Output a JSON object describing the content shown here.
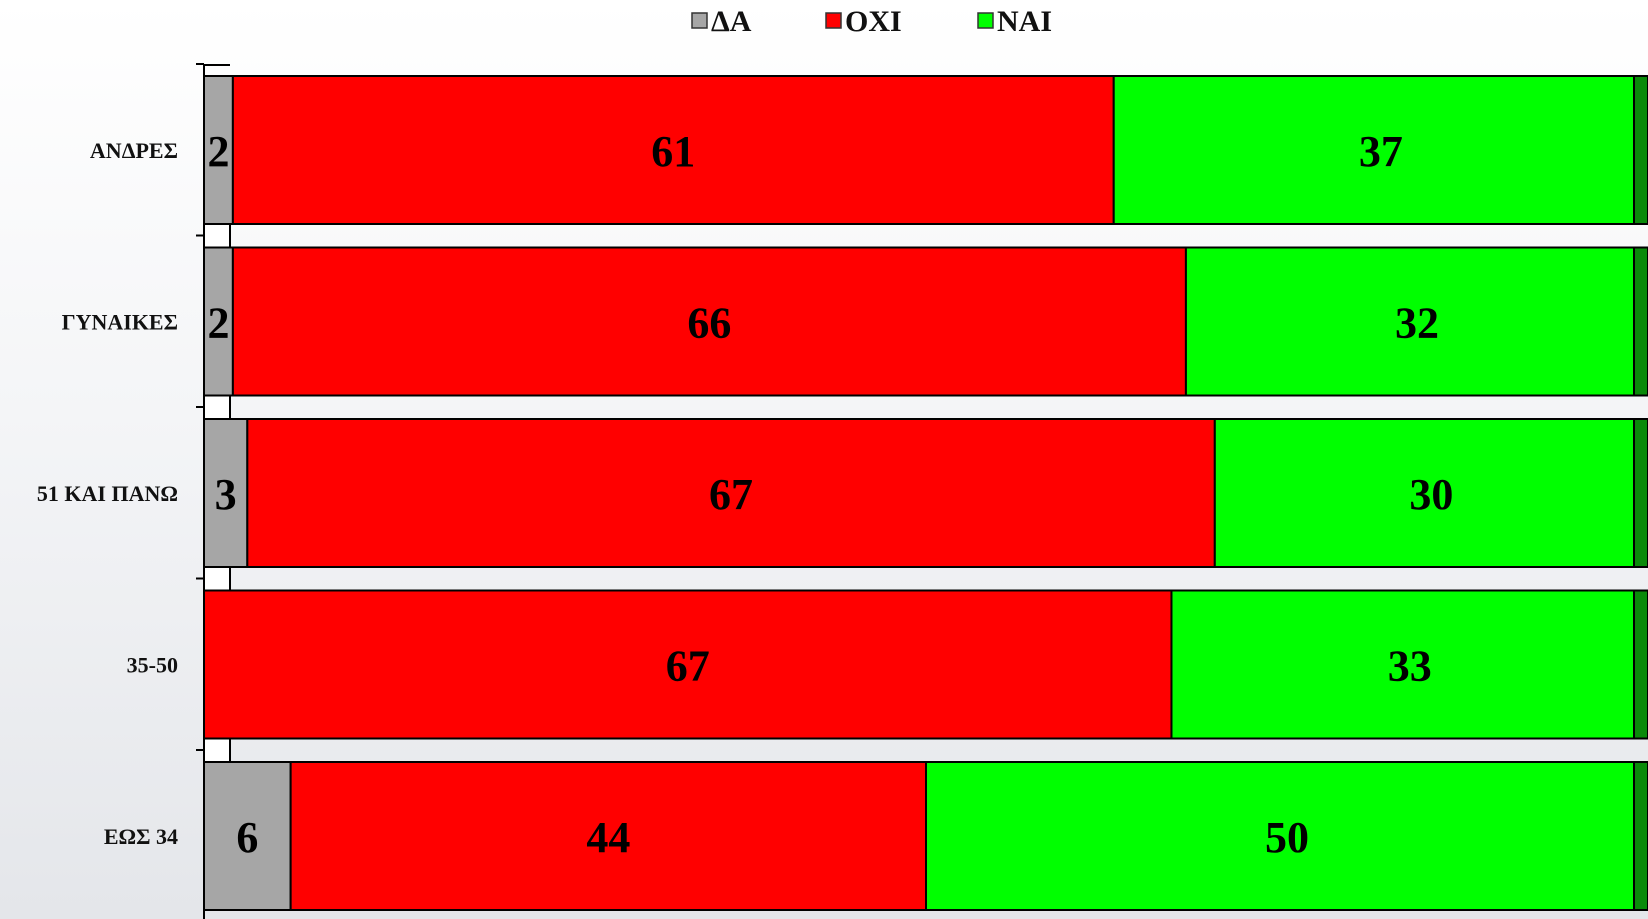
{
  "chart_data": {
    "type": "bar",
    "orientation": "horizontal",
    "stacked": true,
    "categories": [
      "ΑΝΔΡΕΣ",
      "ΓΥΝΑΙΚΕΣ",
      "51 ΚΑΙ ΠΑΝΩ",
      "35-50",
      "ΕΩΣ 34"
    ],
    "series": [
      {
        "name": "ΔΑ",
        "color": "#a6a6a6",
        "values": [
          2,
          2,
          3,
          null,
          6
        ]
      },
      {
        "name": "ΟΧΙ",
        "color": "#ff0000",
        "values": [
          61,
          66,
          67,
          67,
          44
        ]
      },
      {
        "name": "ΝΑΙ",
        "color": "#00ff00",
        "values": [
          37,
          32,
          30,
          33,
          50
        ]
      }
    ],
    "xlim": [
      0,
      100
    ],
    "data_labels": true,
    "legend": "top-center",
    "grid": false,
    "title": "",
    "xlabel": "",
    "ylabel": ""
  }
}
